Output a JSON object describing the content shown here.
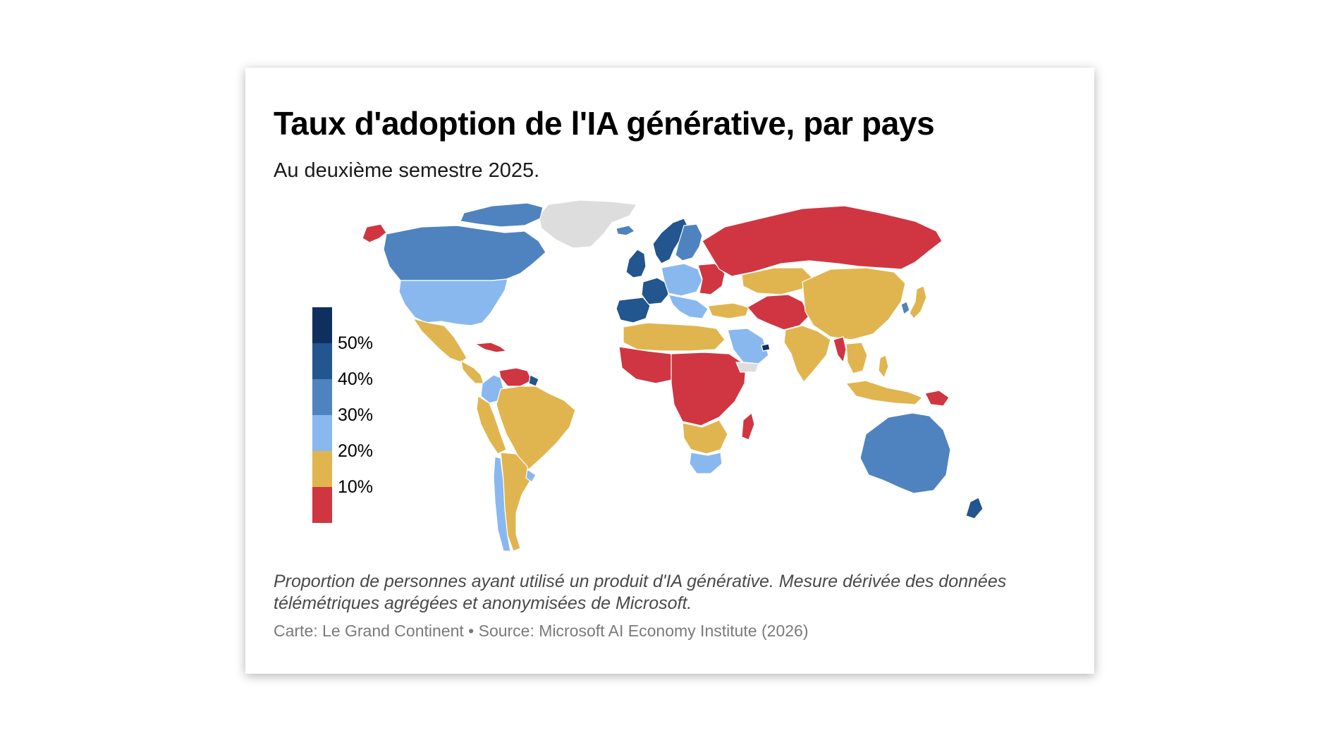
{
  "title": "Taux d'adoption de l'IA générative, par pays",
  "subtitle": "Au deuxième semestre 2025.",
  "legend": {
    "items": [
      {
        "label": "",
        "color": "#0f2f5e",
        "range": "50%+"
      },
      {
        "label": "50%",
        "color": "#23558e",
        "range": "40-50%"
      },
      {
        "label": "40%",
        "color": "#4f83bf",
        "range": "30-40%"
      },
      {
        "label": "30%",
        "color": "#89b8ef",
        "range": "20-30%"
      },
      {
        "label": "20%",
        "color": "#e0b550",
        "range": "10-20%"
      },
      {
        "label": "10%",
        "color": "#cf3641",
        "range": "0-10%"
      }
    ],
    "no_data_color": "#dddddd"
  },
  "map": {
    "regions": [
      {
        "name": "alaska",
        "bin": "0-10%"
      },
      {
        "name": "greenland",
        "bin": "no-data"
      },
      {
        "name": "canada",
        "bin": "30-40%"
      },
      {
        "name": "canada-north",
        "bin": "30-40%"
      },
      {
        "name": "usa",
        "bin": "20-30%"
      },
      {
        "name": "mexico",
        "bin": "10-20%"
      },
      {
        "name": "central-america",
        "bin": "10-20%"
      },
      {
        "name": "caribbean",
        "bin": "0-10%"
      },
      {
        "name": "colombia",
        "bin": "20-30%"
      },
      {
        "name": "venezuela",
        "bin": "0-10%"
      },
      {
        "name": "guiana",
        "bin": "40-50%"
      },
      {
        "name": "brazil",
        "bin": "10-20%"
      },
      {
        "name": "andes",
        "bin": "10-20%"
      },
      {
        "name": "chile",
        "bin": "20-30%"
      },
      {
        "name": "argentina",
        "bin": "10-20%"
      },
      {
        "name": "uruguay",
        "bin": "20-30%"
      },
      {
        "name": "iceland",
        "bin": "30-40%"
      },
      {
        "name": "scandinavia",
        "bin": "40-50%"
      },
      {
        "name": "finland-baltics",
        "bin": "30-40%"
      },
      {
        "name": "uk-ireland",
        "bin": "40-50%"
      },
      {
        "name": "spain",
        "bin": "40-50%"
      },
      {
        "name": "france",
        "bin": "40-50%"
      },
      {
        "name": "central-europe",
        "bin": "20-30%"
      },
      {
        "name": "eastern-europe",
        "bin": "0-10%"
      },
      {
        "name": "balkans-italy",
        "bin": "20-30%"
      },
      {
        "name": "russia",
        "bin": "0-10%"
      },
      {
        "name": "turkey",
        "bin": "10-20%"
      },
      {
        "name": "north-africa",
        "bin": "10-20%"
      },
      {
        "name": "west-africa",
        "bin": "0-10%"
      },
      {
        "name": "central-east-africa",
        "bin": "0-10%"
      },
      {
        "name": "southern-africa-mix",
        "bin": "10-20%"
      },
      {
        "name": "south-africa",
        "bin": "20-30%"
      },
      {
        "name": "madagascar",
        "bin": "0-10%"
      },
      {
        "name": "arabian-peninsula",
        "bin": "20-30%"
      },
      {
        "name": "uae",
        "bin": "50%+"
      },
      {
        "name": "yemen",
        "bin": "no-data"
      },
      {
        "name": "iran-central-asia",
        "bin": "0-10%"
      },
      {
        "name": "kazakhstan",
        "bin": "10-20%"
      },
      {
        "name": "south-asia",
        "bin": "10-20%"
      },
      {
        "name": "china-mongolia",
        "bin": "10-20%"
      },
      {
        "name": "korea",
        "bin": "30-40%"
      },
      {
        "name": "japan",
        "bin": "10-20%"
      },
      {
        "name": "myanmar",
        "bin": "0-10%"
      },
      {
        "name": "mainland-southeast-asia",
        "bin": "10-20%"
      },
      {
        "name": "indonesia",
        "bin": "10-20%"
      },
      {
        "name": "philippines",
        "bin": "10-20%"
      },
      {
        "name": "papua-new-guinea",
        "bin": "0-10%"
      },
      {
        "name": "australia",
        "bin": "30-40%"
      },
      {
        "name": "new-zealand",
        "bin": "40-50%"
      }
    ]
  },
  "footnote": "Proportion de personnes ayant utilisé un produit d'IA générative. Mesure dérivée des données télémétriques agrégées et anonymisées de Microsoft.",
  "source": "Carte: Le Grand Continent • Source: Microsoft AI Economy Institute (2026)"
}
